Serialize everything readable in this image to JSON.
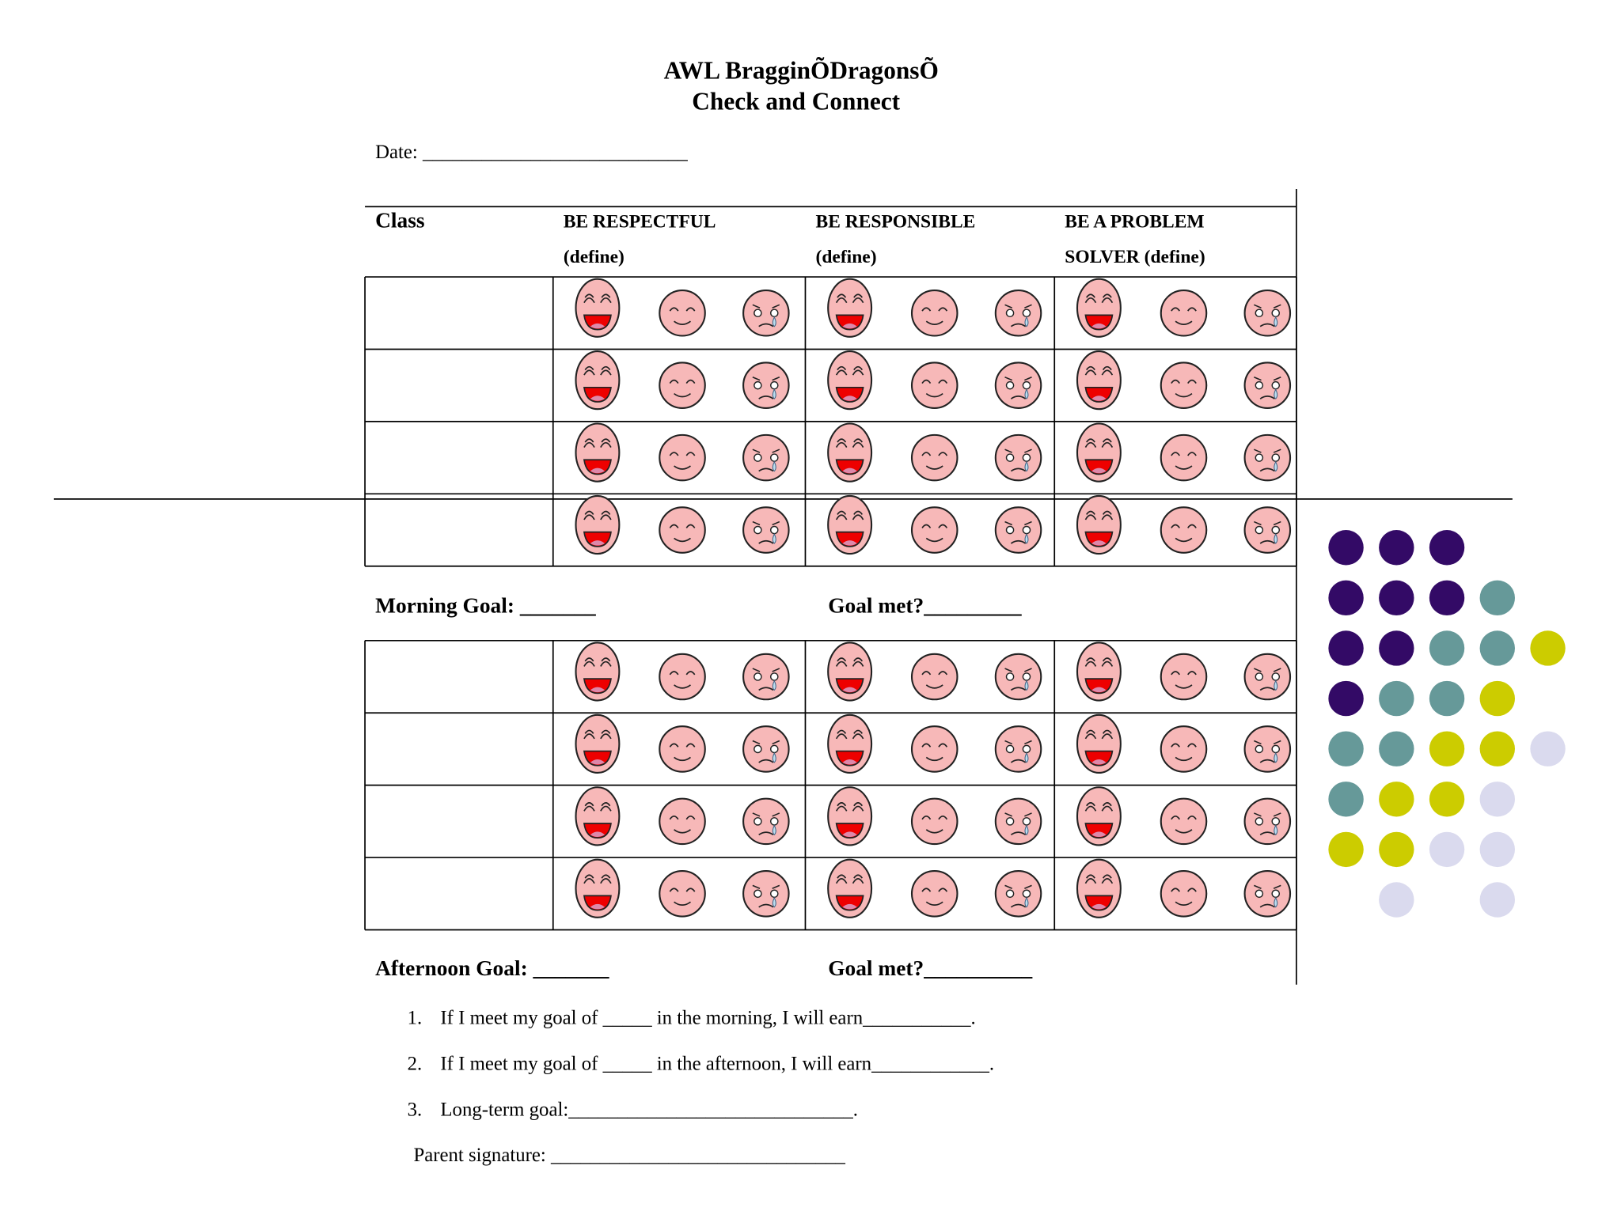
{
  "header": {
    "title_lines": [
      "AWL BragginÕDragonsÕ",
      "Check and Connect"
    ]
  },
  "date_label": "Date: ___________________________",
  "table": {
    "columns": [
      {
        "lines": [
          "Class"
        ]
      },
      {
        "lines": [
          "BE RESPECTFUL",
          "(define)"
        ]
      },
      {
        "lines": [
          "BE RESPONSIBLE",
          "(define)"
        ]
      },
      {
        "lines": [
          "BE A PROBLEM",
          "SOLVER (define)"
        ]
      }
    ]
  },
  "morning": {
    "goal": "Morning Goal:  _______",
    "goal_met": "Goal met?_________"
  },
  "afternoon": {
    "goal": "Afternoon Goal:  _______",
    "goal_met": "Goal met?__________"
  },
  "list": [
    {
      "number": "1.",
      "text": "If I meet my goal of _____ in the morning, I will earn___________."
    },
    {
      "number": "2.",
      "text": "If I meet my goal of _____ in the afternoon, I will earn____________."
    },
    {
      "number": "3.",
      "text": "Long-term goal:_____________________________."
    }
  ],
  "signature": "Parent signature: ______________________________"
}
